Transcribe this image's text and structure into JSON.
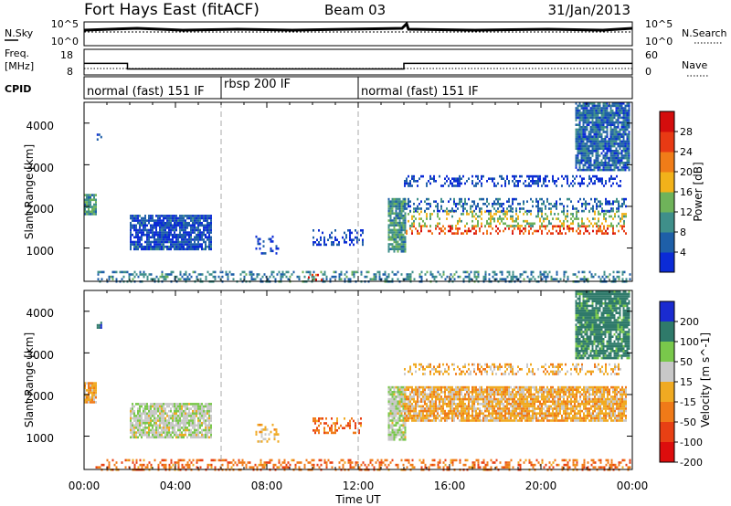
{
  "header": {
    "station": "Fort Hays East (fitACF)",
    "beam": "Beam 03",
    "date": "31/Jan/2013"
  },
  "noise_panel": {
    "left_label": "N.Sky",
    "right_label": "N.Search",
    "left_ticks": [
      "10^5",
      "10^0"
    ],
    "right_ticks": [
      "10^5",
      "10^0"
    ]
  },
  "freq_panel": {
    "left_label_1": "Freq.",
    "left_label_2": "[MHz]",
    "right_label": "Nave",
    "left_ticks": [
      "18",
      "8"
    ],
    "right_ticks": [
      "60",
      "0"
    ],
    "freq_steps": [
      {
        "start_h": 0.0,
        "end_h": 1.9,
        "value": 12.5
      },
      {
        "start_h": 1.9,
        "end_h": 14.0,
        "value": 10.3
      },
      {
        "start_h": 14.0,
        "end_h": 24.0,
        "value": 12.5
      }
    ],
    "nave_level": 15
  },
  "cpid_panel": {
    "label": "CPID",
    "segments": [
      {
        "start_h": 0,
        "end_h": 6,
        "text": "normal (fast) 151 IF"
      },
      {
        "start_h": 6,
        "end_h": 12,
        "text": "rbsp 200 IF"
      },
      {
        "start_h": 12,
        "end_h": 24,
        "text": "normal (fast) 151 IF"
      }
    ]
  },
  "x_axis": {
    "label": "Time UT",
    "ticks": [
      "00:00",
      "04:00",
      "08:00",
      "12:00",
      "16:00",
      "20:00",
      "00:00"
    ],
    "range_h": [
      0,
      24
    ],
    "dashed_lines_h": [
      6,
      12
    ]
  },
  "chart_data": [
    {
      "type": "heatmap",
      "name": "power",
      "ylabel": "Slant Range [km]",
      "yticks": [
        "1000",
        "2000",
        "3000",
        "4000"
      ],
      "ylim": [
        200,
        4500
      ],
      "xlim": [
        0,
        24
      ],
      "colorbar_label": "Power [dB]",
      "colorbar_ticks": [
        "4",
        "8",
        "12",
        "16",
        "20",
        "24",
        "28"
      ],
      "colorbar_range": [
        0,
        30
      ],
      "colors": [
        "#0b2bd6",
        "#1e5fa8",
        "#3f8f8a",
        "#6fb35a",
        "#f2b21a",
        "#f07c18",
        "#e83a14",
        "#d40d0d"
      ],
      "regions": [
        {
          "t0": 0.0,
          "t1": 0.55,
          "r0": 1800,
          "r1": 2300,
          "v": 10
        },
        {
          "t0": 0.55,
          "t1": 0.75,
          "r0": 3600,
          "r1": 3750,
          "v": 4
        },
        {
          "t0": 2.0,
          "t1": 5.6,
          "r0": 1000,
          "r1": 1800,
          "v": 4
        },
        {
          "t0": 7.5,
          "t1": 8.5,
          "r0": 900,
          "r1": 1300,
          "v": 3
        },
        {
          "t0": 10.0,
          "t1": 12.2,
          "r0": 1100,
          "r1": 1450,
          "v": 3
        },
        {
          "t0": 13.3,
          "t1": 14.1,
          "r0": 900,
          "r1": 2200,
          "v": 10
        },
        {
          "t0": 14.0,
          "t1": 23.7,
          "r0": 1350,
          "r1": 1550,
          "v": 24
        },
        {
          "t0": 14.0,
          "t1": 23.7,
          "r0": 1550,
          "r1": 1900,
          "v": 14
        },
        {
          "t0": 14.0,
          "t1": 23.7,
          "r0": 1900,
          "r1": 2200,
          "v": 6
        },
        {
          "t0": 14.0,
          "t1": 23.5,
          "r0": 2500,
          "r1": 2750,
          "v": 3
        },
        {
          "t0": 21.5,
          "t1": 23.9,
          "r0": 2900,
          "r1": 4500,
          "v": 6
        },
        {
          "t0": 0.5,
          "t1": 23.9,
          "r0": 200,
          "r1": 450,
          "v": 8
        },
        {
          "t0": 9.8,
          "t1": 10.4,
          "r0": 250,
          "r1": 380,
          "v": 26
        }
      ]
    },
    {
      "type": "heatmap",
      "name": "velocity",
      "ylabel": "Slant Range [km]",
      "yticks": [
        "1000",
        "2000",
        "3000",
        "4000"
      ],
      "ylim": [
        200,
        4500
      ],
      "xlim": [
        0,
        24
      ],
      "colorbar_label": "Velocity [m s^-1]",
      "colorbar_ticks": [
        "200",
        "100",
        "50",
        "15",
        "-15",
        "-50",
        "-100",
        "-200"
      ],
      "colorbar_range": [
        -250,
        250
      ],
      "colors": [
        "#1a2bd0",
        "#2f7a6a",
        "#79c84b",
        "#c8c8c8",
        "#f0aa22",
        "#f07a18",
        "#e84014",
        "#dd0d0d"
      ],
      "regions": [
        {
          "t0": 0.0,
          "t1": 0.55,
          "r0": 1800,
          "r1": 2300,
          "v": 0
        },
        {
          "t0": 0.55,
          "t1": 0.75,
          "r0": 3600,
          "r1": 3750,
          "v": 200
        },
        {
          "t0": 2.0,
          "t1": 5.6,
          "r0": 1000,
          "r1": 1800,
          "v": 40
        },
        {
          "t0": 7.5,
          "t1": 8.5,
          "r0": 900,
          "r1": 1300,
          "v": 0
        },
        {
          "t0": 10.0,
          "t1": 12.2,
          "r0": 1100,
          "r1": 1450,
          "v": -40
        },
        {
          "t0": 13.3,
          "t1": 14.1,
          "r0": 900,
          "r1": 2200,
          "v": 40
        },
        {
          "t0": 14.0,
          "t1": 23.7,
          "r0": 1350,
          "r1": 2200,
          "v": 0
        },
        {
          "t0": 14.0,
          "t1": 23.5,
          "r0": 2500,
          "r1": 2750,
          "v": 0
        },
        {
          "t0": 21.5,
          "t1": 23.9,
          "r0": 2900,
          "r1": 4500,
          "v": 120
        },
        {
          "t0": 0.5,
          "t1": 23.9,
          "r0": 200,
          "r1": 450,
          "v": -40
        }
      ]
    }
  ]
}
